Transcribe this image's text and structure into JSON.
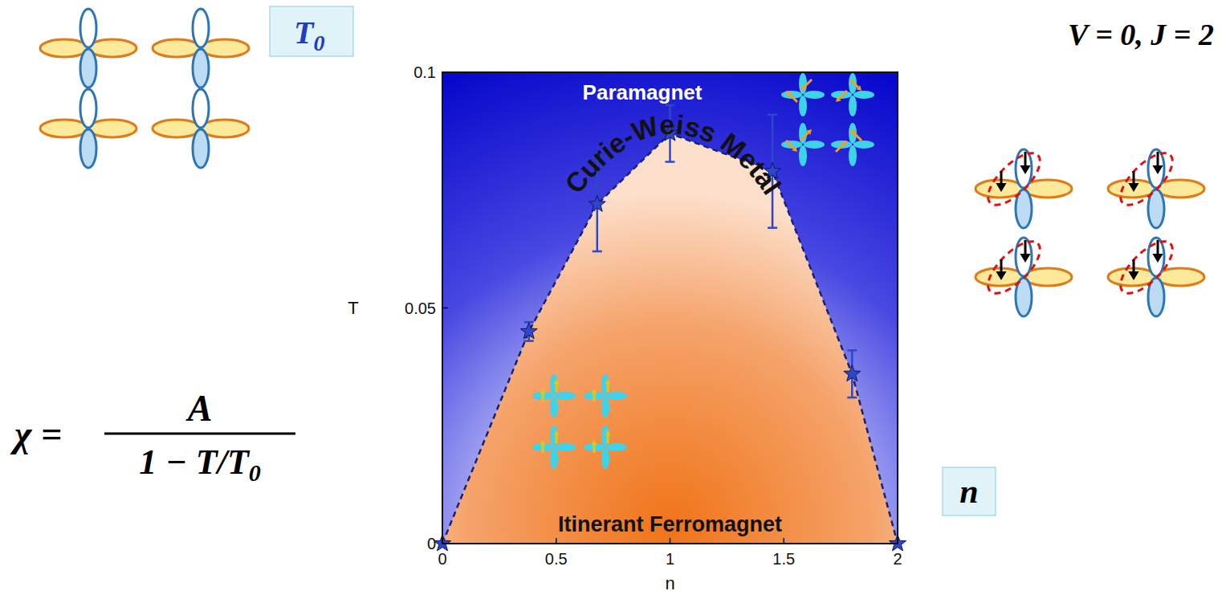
{
  "slide": {
    "t0_box": {
      "symbol": "T",
      "subscript": "0"
    },
    "formula": {
      "lhs": "χ =",
      "numerator": "A",
      "denominator": "1 − T/T",
      "denominator_subscript": "0"
    },
    "parameters": "V = 0, J = 2",
    "n_box": "n"
  },
  "chart_data": {
    "type": "phase_diagram",
    "x_label": "n",
    "y_label": "T",
    "xlim": [
      0,
      2
    ],
    "ylim": [
      0,
      0.1
    ],
    "xticks": [
      0,
      0.5,
      1,
      1.5,
      2
    ],
    "yticks": [
      0,
      0.05,
      0.1
    ],
    "series": [
      {
        "x": [
          0,
          0.38,
          0.68,
          1,
          1.45,
          1.8,
          2
        ],
        "values": [
          0,
          0.045,
          0.072,
          0.087,
          0.079,
          0.036,
          0
        ],
        "errors": [
          0,
          0.002,
          0.01,
          0.006,
          0.012,
          0.005,
          0
        ],
        "color": "#2d47c8",
        "marker": "star",
        "line_style": "dashed"
      }
    ],
    "regions": {
      "above": "Paramagnet",
      "boundary": "Curie-Weiss Metal",
      "below": "Itinerant Ferromagnet"
    }
  }
}
